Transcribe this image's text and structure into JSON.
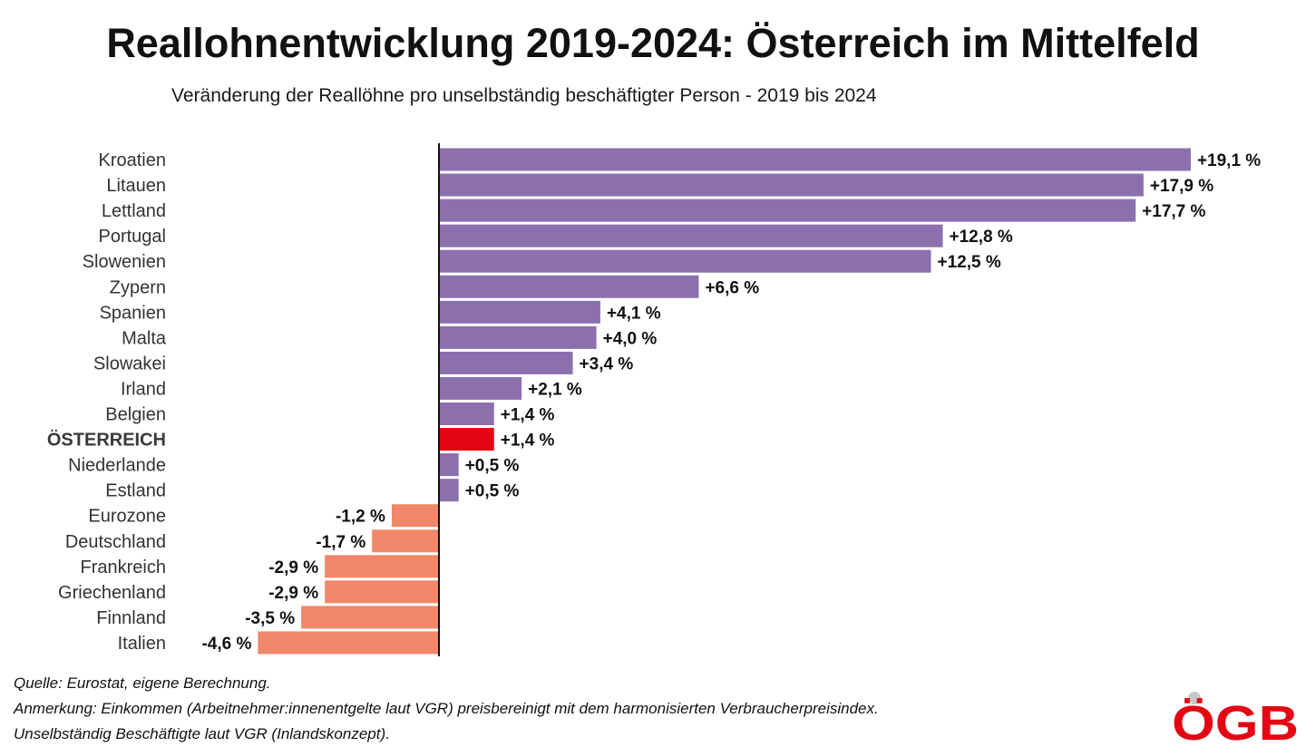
{
  "header": {
    "title": "Reallohnentwicklung 2019-2024: Österreich im Mittelfeld",
    "subtitle": "Veränderung der Reallöhne pro unselbständig beschäftigter Person - 2019 bis 2024"
  },
  "chart_data": {
    "type": "bar",
    "orientation": "horizontal",
    "title": "Reallohnentwicklung 2019-2024: Österreich im Mittelfeld",
    "subtitle": "Veränderung der Reallöhne pro unselbständig beschäftigter Person - 2019 bis 2024",
    "xlabel": "",
    "ylabel": "",
    "unit": "%",
    "xlim": [
      -4.6,
      19.1
    ],
    "grid": false,
    "colors": {
      "positive": "#8c70ae",
      "highlight": "#e30613",
      "negative": "#ef8768"
    },
    "highlight_category": "ÖSTERREICH",
    "categories": [
      "Kroatien",
      "Litauen",
      "Lettland",
      "Portugal",
      "Slowenien",
      "Zypern",
      "Spanien",
      "Malta",
      "Slowakei",
      "Irland",
      "Belgien",
      "ÖSTERREICH",
      "Niederlande",
      "Estland",
      "Eurozone",
      "Deutschland",
      "Frankreich",
      "Griechenland",
      "Finnland",
      "Italien"
    ],
    "values": [
      19.1,
      17.9,
      17.7,
      12.8,
      12.5,
      6.6,
      4.1,
      4.0,
      3.4,
      2.1,
      1.4,
      1.4,
      0.5,
      0.5,
      -1.2,
      -1.7,
      -2.9,
      -2.9,
      -3.5,
      -4.6
    ],
    "value_labels": [
      "+19,1 %",
      "+17,9 %",
      "+17,7 %",
      "+12,8 %",
      "+12,5 %",
      "+6,6 %",
      "+4,1 %",
      "+4,0 %",
      "+3,4 %",
      "+2,1 %",
      "+1,4 %",
      "+1,4 %",
      "+0,5 %",
      "+0,5 %",
      "-1,2 %",
      "-1,7 %",
      "-2,9 %",
      "-2,9 %",
      "-3,5 %",
      "-4,6 %"
    ]
  },
  "footer": {
    "source": "Quelle: Eurostat, eigene Berechnung.",
    "note": "Anmerkung: Einkommen (Arbeitnehmer:innenentgelte laut VGR) preisbereinigt mit dem harmonisierten Verbraucherpreisindex.",
    "note2": "Unselbständig Beschäftigte laut VGR (Inlandskonzept)."
  },
  "logo": {
    "text": "ÖGB",
    "color": "#e30613"
  }
}
